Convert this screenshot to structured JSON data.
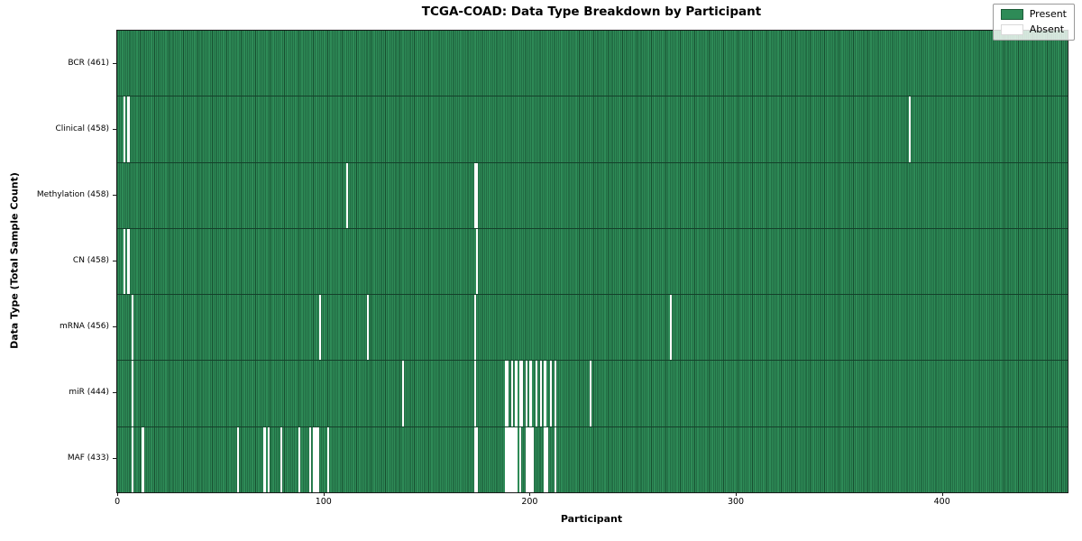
{
  "chart_data": {
    "type": "heatmap",
    "title": "TCGA-COAD: Data Type Breakdown by Participant",
    "xlabel": "Participant",
    "ylabel": "Data Type (Total Sample Count)",
    "n_participants": 461,
    "x_ticks": [
      0,
      100,
      200,
      300,
      400
    ],
    "x_range": [
      0,
      460
    ],
    "grid": false,
    "legend_position": "upper right",
    "legend": [
      {
        "key": "present",
        "label": "Present",
        "color": "#2e8b57"
      },
      {
        "key": "absent",
        "label": "Absent",
        "color": "#ffffff"
      }
    ],
    "colors": {
      "present_fill": "#2e8b57",
      "bar_edge": "#174f30",
      "absent_fill": "#ffffff",
      "row_divider": "#14402a",
      "spine": "#1a1a1a"
    },
    "rows": [
      {
        "key": "bcr",
        "label": "BCR (461)",
        "total_samples": 461,
        "absent_participants": []
      },
      {
        "key": "clinical",
        "label": "Clinical (458)",
        "total_samples": 458,
        "absent_participants": [
          3,
          5,
          384
        ]
      },
      {
        "key": "methylation",
        "label": "Methylation (458)",
        "total_samples": 458,
        "absent_participants": [
          111,
          173,
          174
        ]
      },
      {
        "key": "cn",
        "label": "CN (458)",
        "total_samples": 458,
        "absent_participants": [
          3,
          5,
          174
        ]
      },
      {
        "key": "mrna",
        "label": "mRNA (456)",
        "total_samples": 456,
        "absent_participants": [
          7,
          98,
          121,
          173,
          268
        ]
      },
      {
        "key": "mir",
        "label": "miR (444)",
        "total_samples": 444,
        "absent_participants": [
          7,
          138,
          173,
          188,
          189,
          191,
          193,
          195,
          196,
          198,
          200,
          203,
          205,
          207,
          210,
          212,
          229
        ]
      },
      {
        "key": "maf",
        "label": "MAF (433)",
        "total_samples": 433,
        "absent_participants": [
          7,
          12,
          58,
          71,
          73,
          79,
          88,
          93,
          95,
          96,
          97,
          102,
          173,
          174,
          188,
          189,
          190,
          191,
          192,
          193,
          195,
          198,
          199,
          200,
          201,
          207,
          208,
          212
        ]
      }
    ]
  }
}
